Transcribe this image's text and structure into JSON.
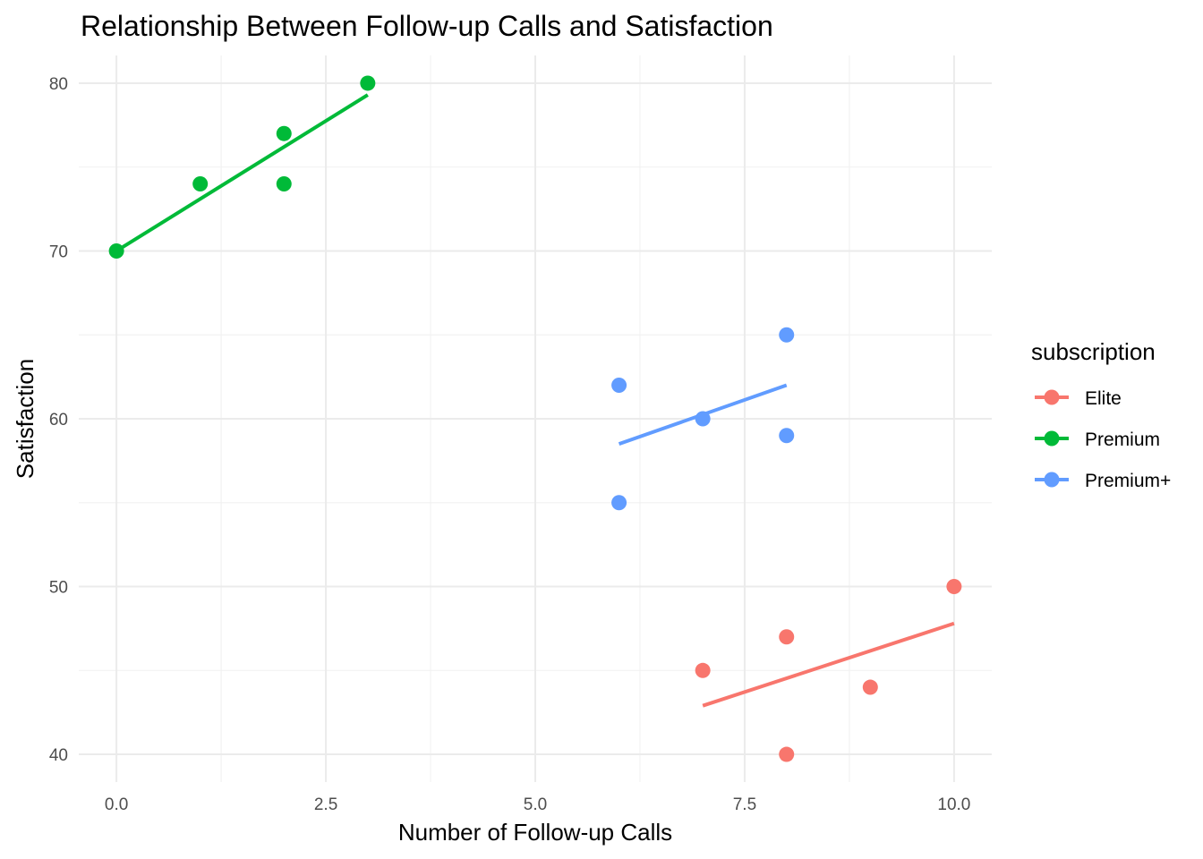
{
  "chart_data": {
    "type": "scatter",
    "title": "Relationship Between Follow-up Calls and Satisfaction",
    "xlabel": "Number of Follow-up Calls",
    "ylabel": "Satisfaction",
    "xlim": [
      -0.45,
      10.45
    ],
    "ylim": [
      38.35,
      81.65
    ],
    "x_ticks": [
      0,
      2.5,
      5,
      7.5,
      10
    ],
    "x_tick_labels": [
      "0.0",
      "2.5",
      "5.0",
      "7.5",
      "10.0"
    ],
    "y_ticks": [
      40,
      50,
      60,
      70,
      80
    ],
    "y_tick_labels": [
      "40",
      "50",
      "60",
      "70",
      "80"
    ],
    "x_minor": [
      1.25,
      3.75,
      6.25,
      8.75
    ],
    "y_minor": [
      45,
      55,
      65,
      75
    ],
    "grid": true,
    "legend": {
      "title": "subscription",
      "position": "right"
    },
    "trend_lines": true,
    "series": [
      {
        "name": "Elite",
        "color": "#F8766D",
        "x": [
          7,
          8,
          8,
          9,
          10
        ],
        "y": [
          45,
          47,
          40,
          44,
          50
        ],
        "fit": {
          "x": [
            7,
            10
          ],
          "y": [
            42.9,
            47.8
          ]
        }
      },
      {
        "name": "Premium",
        "color": "#00BA38",
        "x": [
          0,
          1,
          2,
          2,
          3
        ],
        "y": [
          70,
          74,
          77,
          74,
          80
        ],
        "fit": {
          "x": [
            0,
            3
          ],
          "y": [
            70.0,
            79.3
          ]
        }
      },
      {
        "name": "Premium+",
        "color": "#619CFF",
        "x": [
          6,
          6,
          7,
          8,
          8
        ],
        "y": [
          62,
          55,
          60,
          65,
          59
        ],
        "fit": {
          "x": [
            6,
            8
          ],
          "y": [
            58.5,
            62.0
          ]
        }
      }
    ]
  }
}
